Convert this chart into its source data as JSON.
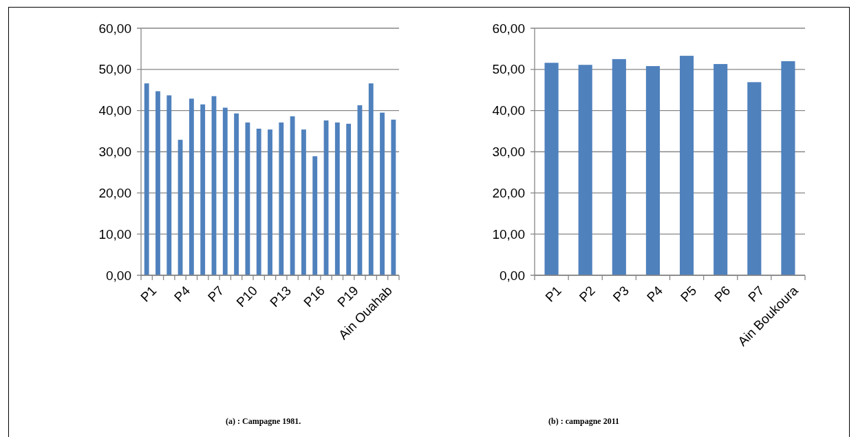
{
  "chart_data": [
    {
      "type": "bar",
      "categories": [
        "P1",
        null,
        null,
        "P4",
        null,
        null,
        "P7",
        null,
        null,
        "P10",
        null,
        null,
        "P13",
        null,
        null,
        "P16",
        null,
        null,
        "P19",
        null,
        null,
        "Ain Ouahab",
        null
      ],
      "values": [
        46.6,
        44.7,
        43.7,
        32.9,
        42.9,
        41.5,
        43.5,
        40.7,
        39.3,
        37.1,
        35.6,
        35.4,
        37.1,
        38.6,
        35.4,
        28.9,
        37.6,
        37.1,
        36.8,
        41.3,
        46.6,
        39.5,
        37.8
      ],
      "color": "#4f81bd",
      "ylim": [
        0,
        60
      ],
      "yticks": [
        {
          "value": 0,
          "label": "0,00"
        },
        {
          "value": 10,
          "label": "10,00"
        },
        {
          "value": 20,
          "label": "20,00"
        },
        {
          "value": 30,
          "label": "30,00"
        },
        {
          "value": 40,
          "label": "40,00"
        },
        {
          "value": 50,
          "label": "50,00"
        },
        {
          "value": 60,
          "label": "60,00"
        }
      ],
      "grid": "y",
      "annotations": [
        "(a) : Campagne 1981."
      ]
    },
    {
      "type": "bar",
      "categories": [
        "P1",
        "P2",
        "P3",
        "P4",
        "P5",
        "P6",
        "P7",
        "Ain Boukoura"
      ],
      "values": [
        51.6,
        51.1,
        52.5,
        50.8,
        53.3,
        51.3,
        46.9,
        52.0
      ],
      "color": "#4f81bd",
      "ylim": [
        0,
        60
      ],
      "yticks": [
        {
          "value": 0,
          "label": "0,00"
        },
        {
          "value": 10,
          "label": "10,00"
        },
        {
          "value": 20,
          "label": "20,00"
        },
        {
          "value": 30,
          "label": "30,00"
        },
        {
          "value": 40,
          "label": "40,00"
        },
        {
          "value": 50,
          "label": "50,00"
        },
        {
          "value": 60,
          "label": "60,00"
        }
      ],
      "grid": "y",
      "annotations": [
        "(b) : campagne 2011"
      ]
    }
  ]
}
